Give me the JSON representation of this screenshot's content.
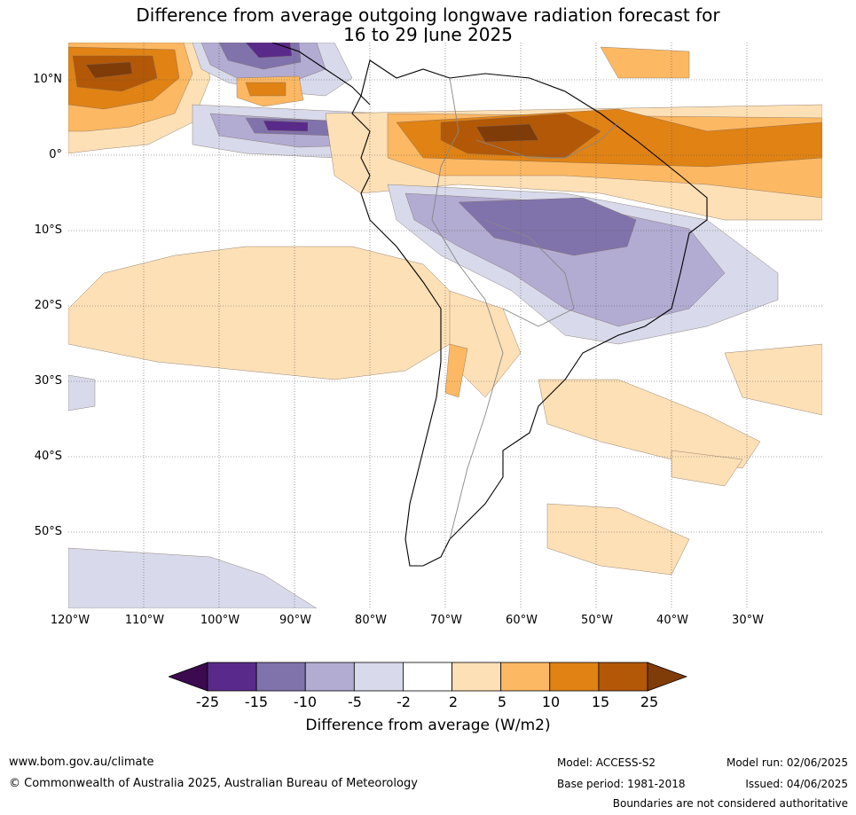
{
  "title_line1": "Difference from average outgoing longwave radiation forecast for",
  "title_line2": "16 to 29 June 2025",
  "lat_labels": [
    "10°N",
    "0°",
    "10°S",
    "20°S",
    "30°S",
    "40°S",
    "50°S"
  ],
  "lon_labels": [
    "120°W",
    "110°W",
    "100°W",
    "90°W",
    "80°W",
    "70°W",
    "60°W",
    "50°W",
    "40°W",
    "30°W"
  ],
  "colorbar": {
    "ticks": [
      "-25",
      "-15",
      "-10",
      "-5",
      "-2",
      "2",
      "5",
      "10",
      "15",
      "25"
    ],
    "colors": [
      "#3b0a4f",
      "#5a2a8a",
      "#8073ac",
      "#b2abd2",
      "#d8daeb",
      "#ffffff",
      "#fee0b6",
      "#fdb863",
      "#e08214",
      "#b35806",
      "#7f3b08"
    ],
    "label": "Difference from average (W/m2)"
  },
  "footer": {
    "website": "www.bom.gov.au/climate",
    "copyright": "© Commonwealth of Australia 2025, Australian Bureau of Meteorology",
    "model": "Model: ACCESS-S2",
    "model_run": "Model run: 02/06/2025",
    "base_period": "Base period: 1981-2018",
    "issued": "Issued: 04/06/2025",
    "disclaimer": "Boundaries are not considered authoritative"
  }
}
